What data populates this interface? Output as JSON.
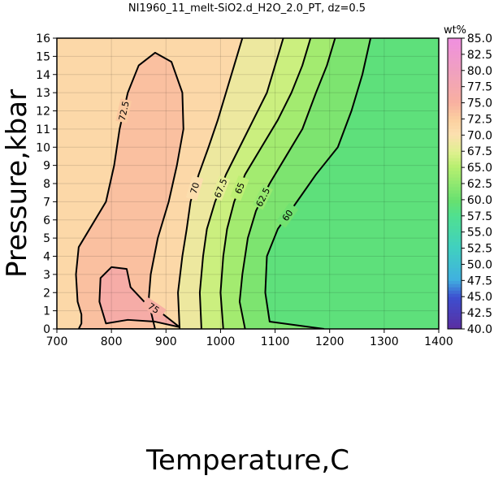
{
  "chart_data": {
    "type": "contour",
    "title": "NI1960_11_melt-SiO2.d_H2O_2.0_PT, dz=0.5",
    "xlabel": "Temperature,C",
    "ylabel": "Pressure,kbar",
    "xlim": [
      700,
      1400
    ],
    "ylim": [
      0,
      16
    ],
    "xticks": [
      700,
      800,
      900,
      1000,
      1100,
      1200,
      1300,
      1400
    ],
    "yticks": [
      0,
      1,
      2,
      3,
      4,
      5,
      6,
      7,
      8,
      9,
      10,
      11,
      12,
      13,
      14,
      15,
      16
    ],
    "grid": true,
    "colorbar": {
      "label": "wt%",
      "lim": [
        40,
        85
      ],
      "ticks": [
        {
          "value": 40,
          "label": "40.0"
        },
        {
          "value": 42.5,
          "label": "42.5"
        },
        {
          "value": 45,
          "label": "45.0"
        },
        {
          "value": 47.5,
          "label": "47.5"
        },
        {
          "value": 50,
          "label": "50.0"
        },
        {
          "value": 52.5,
          "label": "52.5"
        },
        {
          "value": 55,
          "label": "55.0"
        },
        {
          "value": 57.5,
          "label": "57.5"
        },
        {
          "value": 60,
          "label": "60.0"
        },
        {
          "value": 62.5,
          "label": "62.5"
        },
        {
          "value": 65,
          "label": "65.0"
        },
        {
          "value": 67.5,
          "label": "67.5"
        },
        {
          "value": 70,
          "label": "70.0"
        },
        {
          "value": 72.5,
          "label": "72.5"
        },
        {
          "value": 75,
          "label": "75.0"
        },
        {
          "value": 77.5,
          "label": "77.5"
        },
        {
          "value": 80,
          "label": "80.0"
        },
        {
          "value": 82.5,
          "label": "82.5"
        },
        {
          "value": 85,
          "label": "85.0"
        }
      ]
    },
    "contours": [
      {
        "level": 60,
        "x": [
          1190,
          1090,
          1082,
          1085,
          1105,
          1140,
          1175,
          1215,
          1240,
          1260,
          1275
        ],
        "y": [
          0,
          0.4,
          2,
          4,
          5.5,
          7,
          8.5,
          10,
          12,
          14,
          16
        ]
      },
      {
        "level": 62.5,
        "x": [
          1045,
          1035,
          1040,
          1050,
          1065,
          1090,
          1120,
          1150,
          1175,
          1195,
          1210
        ],
        "y": [
          0,
          1.5,
          3,
          5,
          6.5,
          8,
          9.5,
          11,
          13,
          14.5,
          16
        ]
      },
      {
        "level": 65,
        "x": [
          1005,
          1000,
          1005,
          1012,
          1025,
          1045,
          1075,
          1105,
          1130,
          1150,
          1165
        ],
        "y": [
          0,
          2,
          4,
          5.5,
          7,
          8.5,
          10,
          11.5,
          13,
          14.5,
          16
        ]
      },
      {
        "level": 67.5,
        "x": [
          965,
          962,
          968,
          975,
          990,
          1010,
          1035,
          1060,
          1085,
          1100,
          1115
        ],
        "y": [
          0,
          2,
          4,
          5.5,
          7,
          8.5,
          10,
          11.5,
          13,
          14.5,
          16
        ]
      },
      {
        "level": 70,
        "x": [
          925,
          922,
          930,
          938,
          945,
          960,
          978,
          995,
          1010,
          1025,
          1040
        ],
        "y": [
          0,
          2,
          4,
          5.5,
          7,
          8.5,
          10,
          11.5,
          13,
          14.5,
          16
        ]
      },
      {
        "level": 72.5,
        "x": [
          880,
          868,
          872,
          885,
          905,
          920,
          932,
          930,
          910,
          880,
          850,
          830,
          815,
          805,
          790,
          760,
          740,
          735,
          738,
          745,
          745,
          740
        ],
        "y": [
          0,
          1.5,
          3,
          5,
          7,
          9,
          11,
          13,
          14.7,
          15.2,
          14.5,
          13,
          11,
          9,
          7,
          5.5,
          4.5,
          3,
          1.5,
          0.8,
          0.3,
          0
        ]
      },
      {
        "level": 75,
        "x": [
          790,
          778,
          780,
          800,
          828,
          835,
          860,
          895,
          925,
          880,
          830,
          790
        ],
        "y": [
          0.3,
          1.5,
          2.8,
          3.4,
          3.3,
          2.3,
          1.5,
          0.8,
          0.1,
          0.4,
          0.5,
          0.3
        ]
      }
    ]
  }
}
